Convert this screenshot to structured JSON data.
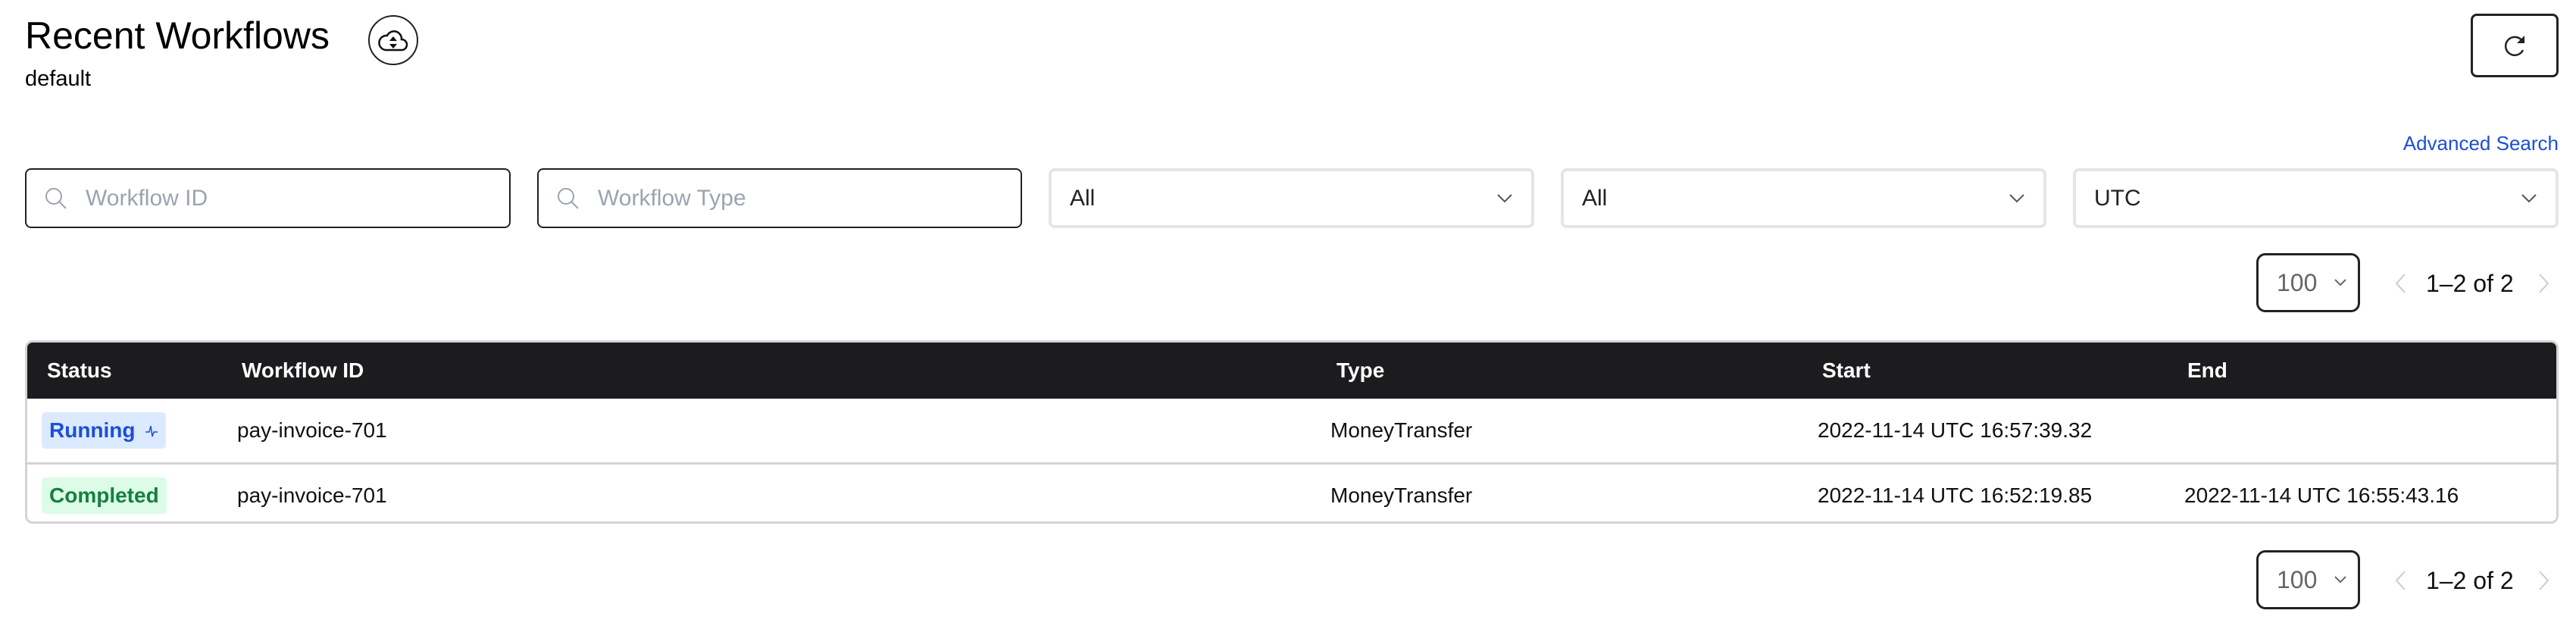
{
  "header": {
    "title": "Recent Workflows",
    "namespace": "default",
    "refresh_icon": "refresh-icon",
    "archive_icon": "cloud-up-down-icon"
  },
  "filters": {
    "advanced_search": "Advanced Search",
    "workflow_id_placeholder": "Workflow ID",
    "workflow_type_placeholder": "Workflow Type",
    "status_select": "All",
    "time_select": "All",
    "timezone_select": "UTC"
  },
  "pagination": {
    "page_size": "100",
    "range": "1–2 of 2"
  },
  "table": {
    "columns": [
      "Status",
      "Workflow ID",
      "Type",
      "Start",
      "End"
    ],
    "rows": [
      {
        "status": "Running",
        "workflow_id": "pay-invoice-701",
        "type": "MoneyTransfer",
        "start": "2022-11-14 UTC 16:57:39.32",
        "end": ""
      },
      {
        "status": "Completed",
        "workflow_id": "pay-invoice-701",
        "type": "MoneyTransfer",
        "start": "2022-11-14 UTC 16:52:19.85",
        "end": "2022-11-14 UTC 16:55:43.16"
      }
    ]
  },
  "colors": {
    "link": "#1d4ed8",
    "running_bg": "#dbeafe",
    "running_fg": "#1d4ed8",
    "completed_bg": "#dcfce7",
    "completed_fg": "#15803d",
    "header_bg": "#1c1c1e"
  }
}
